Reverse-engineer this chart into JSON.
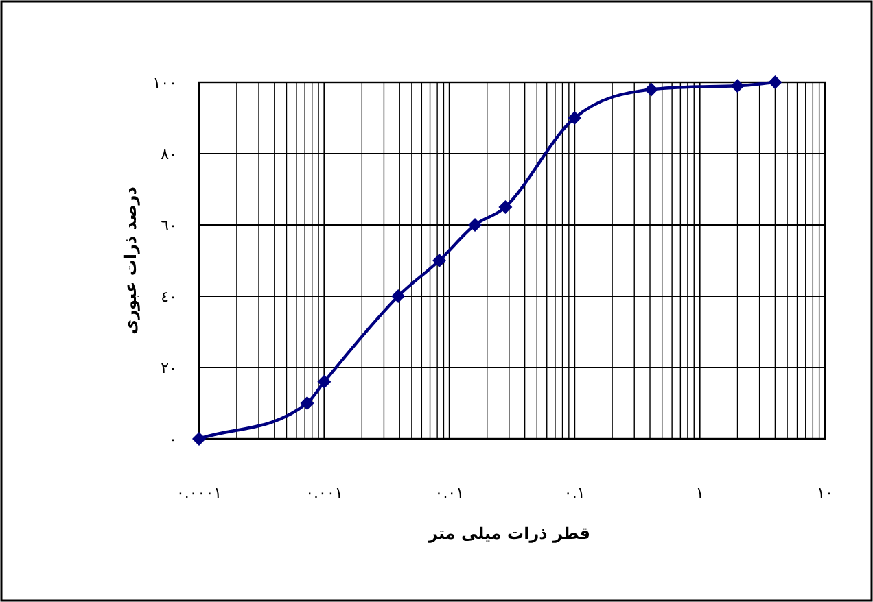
{
  "chart_data": {
    "type": "line",
    "xlabel": "قطر ذرات میلی متر",
    "ylabel": "درصد ذرات عبوری",
    "log": "x",
    "grid": true,
    "marker": "diamond",
    "line_style": "solid",
    "x": [
      0.0001,
      0.00073,
      0.001,
      0.0039,
      0.0083,
      0.016,
      0.028,
      0.1,
      0.41,
      2.0,
      4.0
    ],
    "series": [
      {
        "color": "#000080",
        "values": [
          0,
          10,
          16,
          40,
          50,
          60,
          65,
          90,
          98,
          99,
          100
        ]
      }
    ],
    "xlim": [
      0.0001,
      10
    ],
    "ylim": [
      0,
      100
    ],
    "xticks": [
      {
        "value": 0.0001,
        "label": "٠.٠٠٠١"
      },
      {
        "value": 0.001,
        "label": "٠.٠٠١"
      },
      {
        "value": 0.01,
        "label": "٠.٠١"
      },
      {
        "value": 0.1,
        "label": "٠.١"
      },
      {
        "value": 1,
        "label": "١"
      },
      {
        "value": 10,
        "label": "١٠"
      }
    ],
    "yticks": [
      {
        "value": 0,
        "label": "٠"
      },
      {
        "value": 20,
        "label": "٢٠"
      },
      {
        "value": 40,
        "label": "٤٠"
      },
      {
        "value": 60,
        "label": "٦٠"
      },
      {
        "value": 80,
        "label": "٨٠"
      },
      {
        "value": 100,
        "label": "١٠٠"
      }
    ]
  }
}
